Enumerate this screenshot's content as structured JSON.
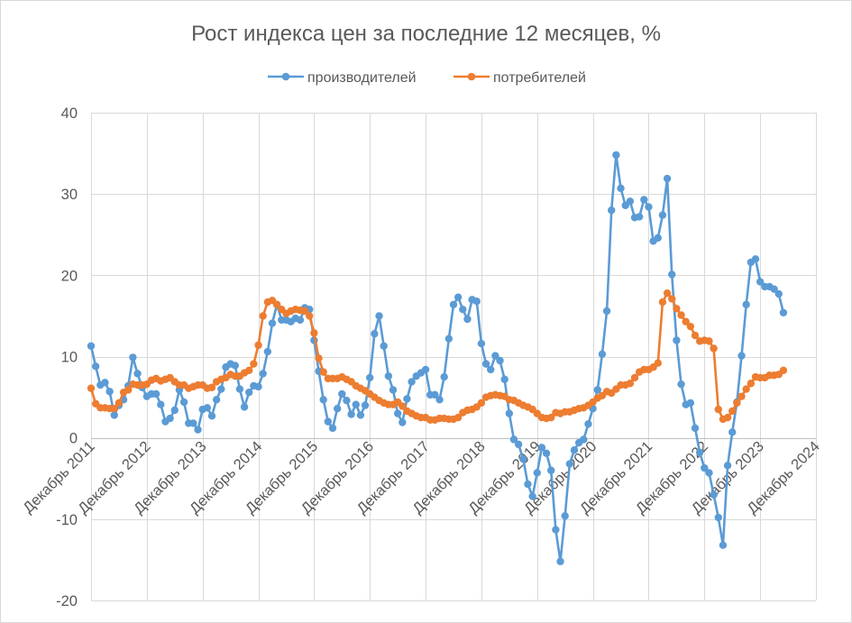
{
  "chart_data": {
    "type": "line",
    "title": "Рост индекса цен за последние 12 месяцев, %",
    "legend": "top",
    "grid": true,
    "ylim": [
      -20,
      40
    ],
    "y_ticks": [
      -20,
      -10,
      0,
      10,
      20,
      30,
      40
    ],
    "xlim": [
      "2011-12",
      "2024-12"
    ],
    "x_tick_labels": [
      "Декабрь 2011",
      "Декабрь 2012",
      "Декабрь 2013",
      "Декабрь 2014",
      "Декабрь 2015",
      "Декабрь 2016",
      "Декабрь 2017",
      "Декабрь 2018",
      "Декабрь 2019",
      "Декабрь 2020",
      "Декабрь 2021",
      "Декабрь 2022",
      "Декабрь 2023",
      "Декабрь 2024"
    ],
    "x": [
      "2011-12",
      "2012-01",
      "2012-02",
      "2012-03",
      "2012-04",
      "2012-05",
      "2012-06",
      "2012-07",
      "2012-08",
      "2012-09",
      "2012-10",
      "2012-11",
      "2012-12",
      "2013-01",
      "2013-02",
      "2013-03",
      "2013-04",
      "2013-05",
      "2013-06",
      "2013-07",
      "2013-08",
      "2013-09",
      "2013-10",
      "2013-11",
      "2013-12",
      "2014-01",
      "2014-02",
      "2014-03",
      "2014-04",
      "2014-05",
      "2014-06",
      "2014-07",
      "2014-08",
      "2014-09",
      "2014-10",
      "2014-11",
      "2014-12",
      "2015-01",
      "2015-02",
      "2015-03",
      "2015-04",
      "2015-05",
      "2015-06",
      "2015-07",
      "2015-08",
      "2015-09",
      "2015-10",
      "2015-11",
      "2015-12",
      "2016-01",
      "2016-02",
      "2016-03",
      "2016-04",
      "2016-05",
      "2016-06",
      "2016-07",
      "2016-08",
      "2016-09",
      "2016-10",
      "2016-11",
      "2016-12",
      "2017-01",
      "2017-02",
      "2017-03",
      "2017-04",
      "2017-05",
      "2017-06",
      "2017-07",
      "2017-08",
      "2017-09",
      "2017-10",
      "2017-11",
      "2017-12",
      "2018-01",
      "2018-02",
      "2018-03",
      "2018-04",
      "2018-05",
      "2018-06",
      "2018-07",
      "2018-08",
      "2018-09",
      "2018-10",
      "2018-11",
      "2018-12",
      "2019-01",
      "2019-02",
      "2019-03",
      "2019-04",
      "2019-05",
      "2019-06",
      "2019-07",
      "2019-08",
      "2019-09",
      "2019-10",
      "2019-11",
      "2019-12",
      "2020-01",
      "2020-02",
      "2020-03",
      "2020-04",
      "2020-05",
      "2020-06",
      "2020-07",
      "2020-08",
      "2020-09",
      "2020-10",
      "2020-11",
      "2020-12",
      "2021-01",
      "2021-02",
      "2021-03",
      "2021-04",
      "2021-05",
      "2021-06",
      "2021-07",
      "2021-08",
      "2021-09",
      "2021-10",
      "2021-11",
      "2021-12",
      "2022-01",
      "2022-02",
      "2022-03",
      "2022-04",
      "2022-05",
      "2022-06",
      "2022-07",
      "2022-08",
      "2022-09",
      "2022-10",
      "2022-11",
      "2022-12",
      "2023-01",
      "2023-02",
      "2023-03",
      "2023-04",
      "2023-05",
      "2023-06",
      "2023-07",
      "2023-08",
      "2023-09",
      "2023-10",
      "2023-11",
      "2023-12",
      "2024-01",
      "2024-02",
      "2024-03",
      "2024-04",
      "2024-05"
    ],
    "series": [
      {
        "name": "производителей",
        "color": "#5B9BD5",
        "values": [
          11.3,
          8.8,
          6.5,
          6.8,
          5.7,
          2.8,
          4.0,
          4.7,
          6.4,
          9.9,
          7.9,
          6.2,
          5.1,
          5.4,
          5.4,
          4.1,
          2.0,
          2.4,
          3.4,
          5.9,
          4.4,
          1.8,
          1.8,
          1.0,
          3.5,
          3.7,
          2.7,
          4.7,
          6.0,
          8.7,
          9.1,
          8.9,
          6.0,
          3.8,
          5.6,
          6.4,
          6.3,
          7.9,
          10.6,
          14.1,
          16.4,
          14.5,
          14.5,
          14.3,
          14.7,
          14.5,
          16.0,
          15.8,
          12.0,
          8.2,
          4.7,
          2.0,
          1.2,
          3.6,
          5.4,
          4.6,
          2.9,
          4.1,
          2.8,
          4.0,
          7.4,
          12.8,
          15.0,
          11.3,
          7.6,
          5.9,
          3.0,
          1.9,
          4.8,
          6.9,
          7.6,
          8.0,
          8.4,
          5.3,
          5.3,
          4.7,
          7.5,
          12.2,
          16.4,
          17.3,
          15.8,
          14.6,
          17.0,
          16.8,
          11.6,
          9.1,
          8.4,
          10.1,
          9.5,
          7.2,
          3.0,
          -0.2,
          -0.8,
          -2.6,
          -5.7,
          -7.2,
          -4.3,
          -1.2,
          -1.9,
          -4.0,
          -11.3,
          -15.2,
          -9.6,
          -3.2,
          -1.5,
          -0.6,
          -0.2,
          1.7,
          3.6,
          5.9,
          10.3,
          15.6,
          28.0,
          34.8,
          30.7,
          28.6,
          29.1,
          27.1,
          27.2,
          29.3,
          28.4,
          24.2,
          24.6,
          27.4,
          31.9,
          20.1,
          12.0,
          6.6,
          4.1,
          4.3,
          1.2,
          -1.8,
          -3.7,
          -4.3,
          -7.0,
          -9.8,
          -13.2,
          -3.4,
          0.7,
          4.4,
          10.1,
          16.4,
          21.6,
          22.0,
          19.2,
          18.6,
          18.6,
          18.3,
          17.7,
          15.4
        ]
      },
      {
        "name": "потребителей",
        "color": "#ED7D31",
        "values": [
          6.1,
          4.2,
          3.7,
          3.7,
          3.6,
          3.6,
          4.3,
          5.6,
          5.9,
          6.6,
          6.5,
          6.5,
          6.6,
          7.1,
          7.3,
          7.0,
          7.2,
          7.4,
          6.9,
          6.5,
          6.5,
          6.1,
          6.3,
          6.5,
          6.5,
          6.1,
          6.2,
          6.9,
          7.2,
          7.4,
          7.8,
          7.6,
          7.6,
          8.0,
          8.3,
          9.1,
          11.4,
          15.0,
          16.7,
          16.9,
          16.4,
          15.8,
          15.3,
          15.6,
          15.8,
          15.7,
          15.6,
          15.0,
          12.9,
          9.8,
          8.1,
          7.3,
          7.3,
          7.3,
          7.5,
          7.2,
          6.9,
          6.4,
          6.1,
          5.8,
          5.4,
          5.0,
          4.6,
          4.3,
          4.1,
          4.1,
          4.4,
          3.9,
          3.3,
          3.0,
          2.7,
          2.5,
          2.5,
          2.2,
          2.2,
          2.4,
          2.4,
          2.3,
          2.3,
          2.5,
          3.1,
          3.4,
          3.5,
          3.8,
          4.3,
          5.0,
          5.2,
          5.3,
          5.2,
          5.1,
          4.7,
          4.6,
          4.3,
          4.0,
          3.8,
          3.5,
          3.0,
          2.5,
          2.4,
          2.5,
          3.1,
          3.0,
          3.2,
          3.2,
          3.4,
          3.6,
          3.7,
          4.0,
          4.4,
          4.9,
          5.2,
          5.7,
          5.5,
          6.0,
          6.5,
          6.5,
          6.7,
          7.4,
          8.1,
          8.4,
          8.4,
          8.7,
          9.2,
          16.7,
          17.8,
          17.1,
          15.9,
          15.1,
          14.3,
          13.7,
          12.6,
          11.9,
          12.0,
          11.9,
          11.0,
          3.5,
          2.3,
          2.5,
          3.3,
          4.3,
          5.1,
          6.0,
          6.7,
          7.5,
          7.4,
          7.4,
          7.7,
          7.7,
          7.8,
          8.3
        ]
      }
    ]
  }
}
